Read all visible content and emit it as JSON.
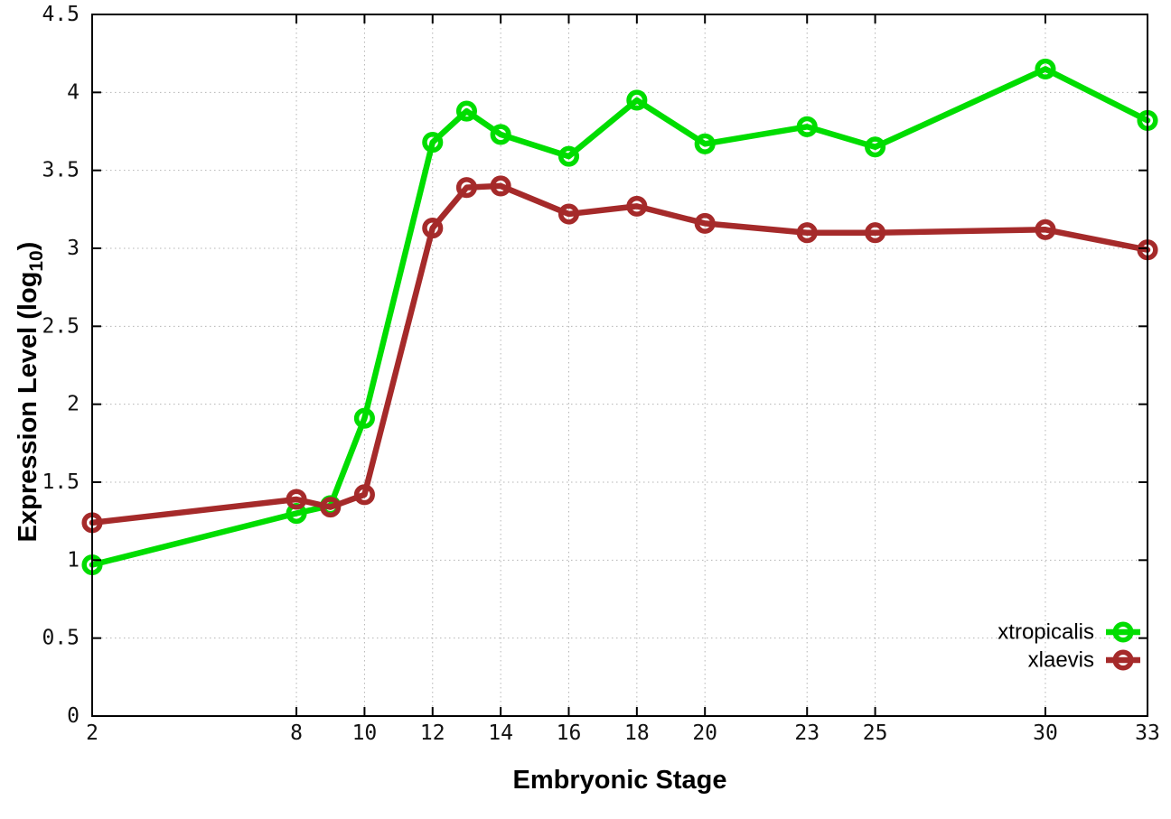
{
  "figure": {
    "background": "#ffffff",
    "text_color": "#000000",
    "grid_color": "#b4b4b4",
    "ylabel_prefix": "Expression Level (log",
    "ylabel_sub": "10",
    "ylabel_suffix": ")"
  },
  "chart_data": {
    "type": "line",
    "title": "",
    "xlabel": "Embryonic Stage",
    "ylabel": "Expression Level (log10)",
    "x": [
      2,
      8,
      9,
      10,
      12,
      13,
      14,
      16,
      18,
      20,
      23,
      25,
      30,
      33
    ],
    "series": [
      {
        "name": "xtropicalis",
        "color": "#00dd00",
        "values": [
          0.97,
          1.3,
          1.35,
          1.91,
          3.68,
          3.88,
          3.73,
          3.59,
          3.95,
          3.67,
          3.78,
          3.65,
          4.15,
          3.82
        ]
      },
      {
        "name": "xlaevis",
        "color": "#a52a2a",
        "values": [
          1.24,
          1.39,
          1.34,
          1.42,
          3.13,
          3.39,
          3.4,
          3.22,
          3.27,
          3.16,
          3.1,
          3.1,
          3.12,
          2.99
        ]
      }
    ],
    "xticks": [
      2,
      8,
      10,
      12,
      14,
      16,
      18,
      20,
      23,
      25,
      30,
      33
    ],
    "xtick_labels": [
      "2",
      "8",
      "10",
      "12",
      "14",
      "16",
      "18",
      "20",
      "23",
      "25",
      "30",
      "33"
    ],
    "yticks": [
      0,
      0.5,
      1,
      1.5,
      2,
      2.5,
      3,
      3.5,
      4,
      4.5
    ],
    "ytick_labels": [
      "0",
      "0.5",
      "1",
      "1.5",
      "2",
      "2.5",
      "3",
      "3.5",
      "4",
      "4.5"
    ],
    "xlim": [
      2,
      33
    ],
    "ylim": [
      0,
      4.5
    ],
    "grid": true,
    "legend_position": "bottom-right",
    "marker": "open-circle"
  }
}
